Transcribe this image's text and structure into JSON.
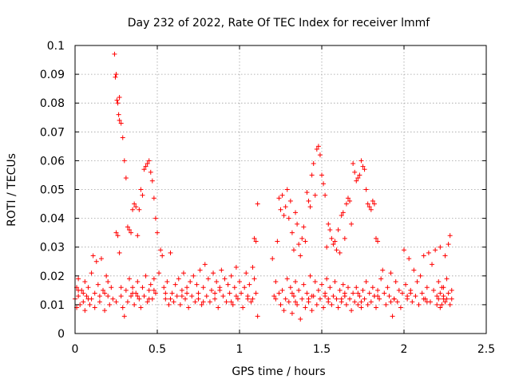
{
  "chart_data": {
    "type": "scatter",
    "title": "Day 232 of 2022, Rate Of TEC Index for receiver lmmf",
    "xlabel": "GPS time / hours",
    "ylabel": "ROTI / TECUs",
    "xlim": [
      0,
      2.5
    ],
    "ylim": [
      0,
      0.1
    ],
    "grid": true,
    "marker": "+",
    "colors": {
      "points": "#ff0000",
      "grid": "#a0a0a0",
      "axis": "#000000"
    },
    "x_ticks": [
      {
        "value": 0,
        "label": "0"
      },
      {
        "value": 0.5,
        "label": "0.5"
      },
      {
        "value": 1,
        "label": "1"
      },
      {
        "value": 1.5,
        "label": "1.5"
      },
      {
        "value": 2,
        "label": "2"
      },
      {
        "value": 2.5,
        "label": "2.5"
      }
    ],
    "y_ticks": [
      {
        "value": 0,
        "label": "0"
      },
      {
        "value": 0.01,
        "label": "0.01"
      },
      {
        "value": 0.02,
        "label": "0.02"
      },
      {
        "value": 0.03,
        "label": "0.03"
      },
      {
        "value": 0.04,
        "label": "0.04"
      },
      {
        "value": 0.05,
        "label": "0.05"
      },
      {
        "value": 0.06,
        "label": "0.06"
      },
      {
        "value": 0.07,
        "label": "0.07"
      },
      {
        "value": 0.08,
        "label": "0.08"
      },
      {
        "value": 0.09,
        "label": "0.09"
      },
      {
        "value": 0.1,
        "label": "0.1"
      }
    ],
    "points": [
      [
        0.0,
        0.012
      ],
      [
        0.01,
        0.016
      ],
      [
        0.01,
        0.009
      ],
      [
        0.02,
        0.019
      ],
      [
        0.02,
        0.013
      ],
      [
        0.03,
        0.01
      ],
      [
        0.04,
        0.015
      ],
      [
        0.05,
        0.011
      ],
      [
        0.06,
        0.018
      ],
      [
        0.06,
        0.008
      ],
      [
        0.07,
        0.013
      ],
      [
        0.08,
        0.016
      ],
      [
        0.09,
        0.01
      ],
      [
        0.1,
        0.021
      ],
      [
        0.1,
        0.012
      ],
      [
        0.11,
        0.027
      ],
      [
        0.12,
        0.014
      ],
      [
        0.12,
        0.009
      ],
      [
        0.13,
        0.025
      ],
      [
        0.14,
        0.017
      ],
      [
        0.15,
        0.011
      ],
      [
        0.16,
        0.026
      ],
      [
        0.17,
        0.015
      ],
      [
        0.18,
        0.008
      ],
      [
        0.19,
        0.02
      ],
      [
        0.2,
        0.013
      ],
      [
        0.2,
        0.018
      ],
      [
        0.21,
        0.01
      ],
      [
        0.22,
        0.016
      ],
      [
        0.23,
        0.012
      ],
      [
        0.24,
        0.097
      ],
      [
        0.245,
        0.089
      ],
      [
        0.25,
        0.09
      ],
      [
        0.255,
        0.081
      ],
      [
        0.26,
        0.08
      ],
      [
        0.265,
        0.076
      ],
      [
        0.27,
        0.074
      ],
      [
        0.27,
        0.082
      ],
      [
        0.28,
        0.073
      ],
      [
        0.29,
        0.068
      ],
      [
        0.3,
        0.06
      ],
      [
        0.31,
        0.054
      ],
      [
        0.32,
        0.037
      ],
      [
        0.33,
        0.036
      ],
      [
        0.34,
        0.035
      ],
      [
        0.35,
        0.043
      ],
      [
        0.36,
        0.045
      ],
      [
        0.37,
        0.044
      ],
      [
        0.38,
        0.034
      ],
      [
        0.39,
        0.043
      ],
      [
        0.4,
        0.05
      ],
      [
        0.41,
        0.048
      ],
      [
        0.42,
        0.057
      ],
      [
        0.43,
        0.058
      ],
      [
        0.44,
        0.059
      ],
      [
        0.45,
        0.06
      ],
      [
        0.46,
        0.056
      ],
      [
        0.47,
        0.053
      ],
      [
        0.48,
        0.047
      ],
      [
        0.49,
        0.04
      ],
      [
        0.25,
        0.035
      ],
      [
        0.26,
        0.034
      ],
      [
        0.27,
        0.028
      ],
      [
        0.28,
        0.013
      ],
      [
        0.29,
        0.009
      ],
      [
        0.3,
        0.006
      ],
      [
        0.31,
        0.015
      ],
      [
        0.32,
        0.011
      ],
      [
        0.33,
        0.019
      ],
      [
        0.34,
        0.013
      ],
      [
        0.35,
        0.016
      ],
      [
        0.36,
        0.01
      ],
      [
        0.37,
        0.014
      ],
      [
        0.38,
        0.018
      ],
      [
        0.39,
        0.012
      ],
      [
        0.4,
        0.009
      ],
      [
        0.41,
        0.016
      ],
      [
        0.42,
        0.013
      ],
      [
        0.43,
        0.02
      ],
      [
        0.44,
        0.011
      ],
      [
        0.45,
        0.015
      ],
      [
        0.46,
        0.017
      ],
      [
        0.47,
        0.012
      ],
      [
        0.48,
        0.019
      ],
      [
        0.49,
        0.014
      ],
      [
        0.5,
        0.035
      ],
      [
        0.51,
        0.021
      ],
      [
        0.52,
        0.029
      ],
      [
        0.53,
        0.027
      ],
      [
        0.54,
        0.016
      ],
      [
        0.55,
        0.012
      ],
      [
        0.56,
        0.018
      ],
      [
        0.57,
        0.01
      ],
      [
        0.58,
        0.028
      ],
      [
        0.59,
        0.014
      ],
      [
        0.6,
        0.011
      ],
      [
        0.61,
        0.017
      ],
      [
        0.62,
        0.013
      ],
      [
        0.63,
        0.019
      ],
      [
        0.64,
        0.01
      ],
      [
        0.65,
        0.015
      ],
      [
        0.66,
        0.021
      ],
      [
        0.67,
        0.012
      ],
      [
        0.68,
        0.016
      ],
      [
        0.69,
        0.009
      ],
      [
        0.7,
        0.018
      ],
      [
        0.71,
        0.013
      ],
      [
        0.72,
        0.02
      ],
      [
        0.73,
        0.011
      ],
      [
        0.74,
        0.017
      ],
      [
        0.75,
        0.014
      ],
      [
        0.76,
        0.022
      ],
      [
        0.77,
        0.01
      ],
      [
        0.78,
        0.016
      ],
      [
        0.79,
        0.024
      ],
      [
        0.8,
        0.013
      ],
      [
        0.81,
        0.019
      ],
      [
        0.82,
        0.011
      ],
      [
        0.83,
        0.015
      ],
      [
        0.84,
        0.021
      ],
      [
        0.85,
        0.012
      ],
      [
        0.86,
        0.018
      ],
      [
        0.87,
        0.009
      ],
      [
        0.88,
        0.016
      ],
      [
        0.89,
        0.022
      ],
      [
        0.9,
        0.013
      ],
      [
        0.91,
        0.019
      ],
      [
        0.92,
        0.011
      ],
      [
        0.93,
        0.017
      ],
      [
        0.94,
        0.014
      ],
      [
        0.95,
        0.02
      ],
      [
        0.96,
        0.01
      ],
      [
        0.97,
        0.016
      ],
      [
        0.98,
        0.023
      ],
      [
        0.99,
        0.012
      ],
      [
        1.0,
        0.018
      ],
      [
        1.01,
        0.014
      ],
      [
        1.02,
        0.009
      ],
      [
        1.03,
        0.016
      ],
      [
        1.04,
        0.021
      ],
      [
        1.05,
        0.012
      ],
      [
        1.06,
        0.017
      ],
      [
        1.07,
        0.011
      ],
      [
        1.08,
        0.023
      ],
      [
        1.09,
        0.033
      ],
      [
        1.1,
        0.032
      ],
      [
        1.11,
        0.045
      ],
      [
        1.11,
        0.006
      ],
      [
        1.1,
        0.014
      ],
      [
        1.09,
        0.019
      ],
      [
        1.2,
        0.026
      ],
      [
        1.21,
        0.013
      ],
      [
        1.22,
        0.018
      ],
      [
        1.23,
        0.032
      ],
      [
        1.24,
        0.047
      ],
      [
        1.25,
        0.043
      ],
      [
        1.26,
        0.048
      ],
      [
        1.27,
        0.041
      ],
      [
        1.28,
        0.044
      ],
      [
        1.29,
        0.05
      ],
      [
        1.3,
        0.04
      ],
      [
        1.31,
        0.046
      ],
      [
        1.32,
        0.035
      ],
      [
        1.33,
        0.029
      ],
      [
        1.34,
        0.042
      ],
      [
        1.35,
        0.038
      ],
      [
        1.36,
        0.031
      ],
      [
        1.37,
        0.027
      ],
      [
        1.38,
        0.033
      ],
      [
        1.39,
        0.037
      ],
      [
        1.4,
        0.032
      ],
      [
        1.41,
        0.049
      ],
      [
        1.42,
        0.046
      ],
      [
        1.43,
        0.044
      ],
      [
        1.44,
        0.055
      ],
      [
        1.45,
        0.059
      ],
      [
        1.46,
        0.048
      ],
      [
        1.47,
        0.064
      ],
      [
        1.48,
        0.065
      ],
      [
        1.49,
        0.062
      ],
      [
        1.5,
        0.055
      ],
      [
        1.51,
        0.052
      ],
      [
        1.52,
        0.048
      ],
      [
        1.53,
        0.03
      ],
      [
        1.54,
        0.038
      ],
      [
        1.55,
        0.036
      ],
      [
        1.56,
        0.033
      ],
      [
        1.57,
        0.031
      ],
      [
        1.58,
        0.032
      ],
      [
        1.59,
        0.029
      ],
      [
        1.6,
        0.036
      ],
      [
        1.61,
        0.028
      ],
      [
        1.62,
        0.041
      ],
      [
        1.63,
        0.042
      ],
      [
        1.64,
        0.033
      ],
      [
        1.65,
        0.045
      ],
      [
        1.66,
        0.047
      ],
      [
        1.67,
        0.046
      ],
      [
        1.68,
        0.038
      ],
      [
        1.69,
        0.059
      ],
      [
        1.7,
        0.056
      ],
      [
        1.71,
        0.053
      ],
      [
        1.72,
        0.054
      ],
      [
        1.73,
        0.055
      ],
      [
        1.74,
        0.06
      ],
      [
        1.75,
        0.058
      ],
      [
        1.76,
        0.057
      ],
      [
        1.77,
        0.05
      ],
      [
        1.78,
        0.045
      ],
      [
        1.79,
        0.044
      ],
      [
        1.8,
        0.043
      ],
      [
        1.81,
        0.046
      ],
      [
        1.82,
        0.045
      ],
      [
        1.83,
        0.033
      ],
      [
        1.84,
        0.032
      ],
      [
        1.25,
        0.01
      ],
      [
        1.26,
        0.015
      ],
      [
        1.27,
        0.008
      ],
      [
        1.28,
        0.012
      ],
      [
        1.29,
        0.019
      ],
      [
        1.3,
        0.011
      ],
      [
        1.31,
        0.016
      ],
      [
        1.32,
        0.007
      ],
      [
        1.33,
        0.013
      ],
      [
        1.34,
        0.018
      ],
      [
        1.35,
        0.01
      ],
      [
        1.36,
        0.015
      ],
      [
        1.37,
        0.005
      ],
      [
        1.38,
        0.012
      ],
      [
        1.39,
        0.017
      ],
      [
        1.4,
        0.009
      ],
      [
        1.41,
        0.014
      ],
      [
        1.42,
        0.011
      ],
      [
        1.43,
        0.02
      ],
      [
        1.44,
        0.008
      ],
      [
        1.45,
        0.013
      ],
      [
        1.46,
        0.018
      ],
      [
        1.47,
        0.01
      ],
      [
        1.48,
        0.015
      ],
      [
        1.49,
        0.012
      ],
      [
        1.5,
        0.017
      ],
      [
        1.51,
        0.009
      ],
      [
        1.52,
        0.014
      ],
      [
        1.53,
        0.019
      ],
      [
        1.54,
        0.011
      ],
      [
        1.55,
        0.016
      ],
      [
        1.56,
        0.01
      ],
      [
        1.57,
        0.013
      ],
      [
        1.58,
        0.018
      ],
      [
        1.59,
        0.012
      ],
      [
        1.6,
        0.009
      ],
      [
        1.61,
        0.015
      ],
      [
        1.62,
        0.011
      ],
      [
        1.63,
        0.017
      ],
      [
        1.64,
        0.013
      ],
      [
        1.65,
        0.01
      ],
      [
        1.66,
        0.016
      ],
      [
        1.67,
        0.012
      ],
      [
        1.68,
        0.008
      ],
      [
        1.69,
        0.014
      ],
      [
        1.7,
        0.011
      ],
      [
        1.71,
        0.016
      ],
      [
        1.72,
        0.01
      ],
      [
        1.73,
        0.013
      ],
      [
        1.74,
        0.009
      ],
      [
        1.75,
        0.015
      ],
      [
        1.76,
        0.012
      ],
      [
        1.77,
        0.018
      ],
      [
        1.78,
        0.01
      ],
      [
        1.79,
        0.014
      ],
      [
        1.8,
        0.011
      ],
      [
        1.81,
        0.016
      ],
      [
        1.82,
        0.013
      ],
      [
        1.83,
        0.009
      ],
      [
        1.84,
        0.015
      ],
      [
        1.85,
        0.012
      ],
      [
        1.86,
        0.019
      ],
      [
        1.87,
        0.022
      ],
      [
        1.88,
        0.014
      ],
      [
        1.89,
        0.01
      ],
      [
        1.9,
        0.016
      ],
      [
        1.91,
        0.013
      ],
      [
        1.92,
        0.021
      ],
      [
        1.93,
        0.006
      ],
      [
        1.94,
        0.012
      ],
      [
        1.95,
        0.018
      ],
      [
        1.96,
        0.011
      ],
      [
        1.97,
        0.015
      ],
      [
        1.98,
        0.009
      ],
      [
        1.99,
        0.014
      ],
      [
        2.0,
        0.029
      ],
      [
        2.01,
        0.017
      ],
      [
        2.02,
        0.012
      ],
      [
        2.03,
        0.026
      ],
      [
        2.04,
        0.015
      ],
      [
        2.05,
        0.011
      ],
      [
        2.06,
        0.022
      ],
      [
        2.07,
        0.013
      ],
      [
        2.08,
        0.018
      ],
      [
        2.09,
        0.01
      ],
      [
        2.1,
        0.02
      ],
      [
        2.11,
        0.014
      ],
      [
        2.12,
        0.027
      ],
      [
        2.13,
        0.012
      ],
      [
        2.14,
        0.016
      ],
      [
        2.15,
        0.028
      ],
      [
        2.16,
        0.011
      ],
      [
        2.17,
        0.024
      ],
      [
        2.18,
        0.015
      ],
      [
        2.19,
        0.029
      ],
      [
        2.2,
        0.013
      ],
      [
        2.21,
        0.018
      ],
      [
        2.22,
        0.03
      ],
      [
        2.23,
        0.01
      ],
      [
        2.24,
        0.016
      ],
      [
        2.25,
        0.027
      ],
      [
        2.26,
        0.012
      ],
      [
        2.27,
        0.031
      ],
      [
        2.28,
        0.034
      ],
      [
        2.29,
        0.015
      ],
      [
        2.29,
        0.012
      ],
      [
        2.28,
        0.01
      ],
      [
        2.27,
        0.014
      ],
      [
        2.26,
        0.019
      ],
      [
        2.25,
        0.011
      ],
      [
        2.24,
        0.013
      ],
      [
        2.23,
        0.016
      ],
      [
        2.22,
        0.009
      ],
      [
        2.21,
        0.012
      ],
      [
        2.2,
        0.01
      ],
      [
        0.05,
        0.014
      ],
      [
        0.15,
        0.013
      ],
      [
        0.25,
        0.011
      ],
      [
        0.35,
        0.014
      ],
      [
        0.45,
        0.012
      ],
      [
        0.55,
        0.014
      ],
      [
        0.65,
        0.013
      ],
      [
        0.75,
        0.012
      ],
      [
        0.85,
        0.014
      ],
      [
        0.95,
        0.011
      ],
      [
        1.05,
        0.013
      ],
      [
        1.22,
        0.012
      ],
      [
        1.32,
        0.014
      ],
      [
        1.42,
        0.012
      ],
      [
        1.52,
        0.013
      ],
      [
        1.62,
        0.012
      ],
      [
        1.72,
        0.014
      ],
      [
        1.82,
        0.013
      ],
      [
        1.92,
        0.011
      ],
      [
        2.02,
        0.013
      ],
      [
        2.12,
        0.012
      ],
      [
        2.22,
        0.014
      ],
      [
        0.02,
        0.015
      ],
      [
        0.08,
        0.012
      ],
      [
        0.18,
        0.014
      ],
      [
        0.28,
        0.016
      ],
      [
        0.38,
        0.013
      ],
      [
        0.48,
        0.015
      ],
      [
        0.58,
        0.012
      ],
      [
        0.68,
        0.014
      ],
      [
        0.78,
        0.011
      ],
      [
        0.88,
        0.015
      ],
      [
        0.98,
        0.013
      ],
      [
        1.08,
        0.012
      ],
      [
        1.24,
        0.014
      ],
      [
        1.34,
        0.011
      ],
      [
        1.44,
        0.013
      ],
      [
        1.54,
        0.012
      ],
      [
        1.64,
        0.014
      ],
      [
        1.74,
        0.011
      ],
      [
        1.84,
        0.013
      ],
      [
        1.94,
        0.012
      ],
      [
        2.04,
        0.014
      ],
      [
        2.14,
        0.011
      ],
      [
        2.24,
        0.012
      ]
    ]
  }
}
